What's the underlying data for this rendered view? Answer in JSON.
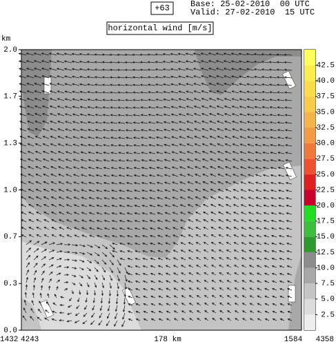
{
  "chart_data": {
    "type": "cross-section",
    "forecast": "+63",
    "base": "Base: 25-02-2010  00 UTC",
    "valid": "Valid: 27-02-2010  15 UTC",
    "title": "horizontal wind [m/s]",
    "y_unit": "km",
    "ylim": [
      0,
      2
    ],
    "yticks": [
      {
        "value": 2,
        "label": "2.0"
      },
      {
        "value": 1.667,
        "label": "1.7"
      },
      {
        "value": 1.333,
        "label": "1.3"
      },
      {
        "value": 1,
        "label": "1.0"
      },
      {
        "value": 0.667,
        "label": "0.7"
      },
      {
        "value": 0.333,
        "label": "0.3"
      },
      {
        "value": 0,
        "label": "0.0"
      }
    ],
    "x_labels": [
      "1432",
      "4243",
      "178 km",
      "1584",
      "4358"
    ],
    "colorbar": {
      "lim": [
        0,
        45
      ],
      "levels": [
        0,
        2.5,
        5,
        7.5,
        10,
        12.5,
        15,
        17.5,
        20,
        22.5,
        25,
        27.5,
        30,
        32.5,
        35,
        37.5,
        40,
        42.5,
        45
      ],
      "colors": [
        "#eeeeee",
        "#dcdcdc",
        "#c4c4c4",
        "#a8a8a8",
        "#8c8c8c",
        "#2e9a2e",
        "#3cbf3c",
        "#22dd22",
        "#c8002a",
        "#e02020",
        "#ee5030",
        "#f07838",
        "#f29a44",
        "#f4b448",
        "#f6cc48",
        "#f8dc48",
        "#fcec4c",
        "#ffff5a"
      ],
      "ticks": [
        2.5,
        {
          "value": 5,
          "label": "5.0"
        },
        7.5,
        {
          "value": 10,
          "label": "10.0"
        },
        12.5,
        {
          "value": 15,
          "label": "15.0"
        },
        17.5,
        {
          "value": 20,
          "label": "20.0"
        },
        22.5,
        {
          "value": 25,
          "label": "25.0"
        },
        27.5,
        {
          "value": 30,
          "label": "30.0"
        },
        32.5,
        {
          "value": 35,
          "label": "35.0"
        },
        37.5,
        {
          "value": 40,
          "label": "40.0"
        },
        42.5
      ]
    }
  }
}
